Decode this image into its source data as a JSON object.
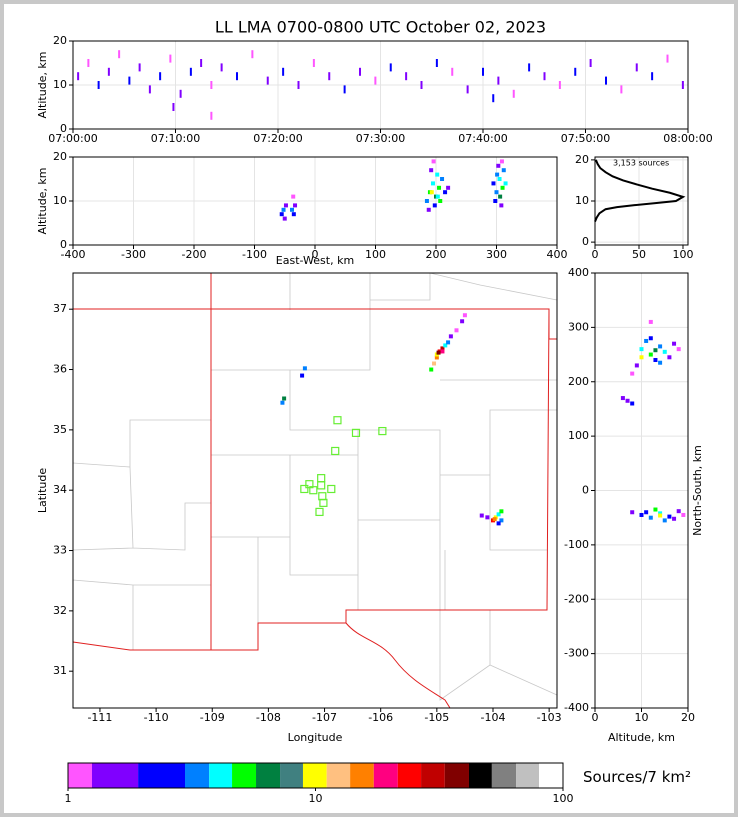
{
  "chart_data": [
    {
      "type": "scatter",
      "title": "LL LMA 0700-0800 UTC October 02, 2023",
      "ylabel": "Altitude, km",
      "xlim": [
        0,
        60
      ],
      "ylim": [
        0,
        20
      ],
      "xticks": [
        {
          "value": 0,
          "label": "07:00:00"
        },
        {
          "value": 10,
          "label": "07:10:00"
        },
        {
          "value": 20,
          "label": "07:20:00"
        },
        {
          "value": 30,
          "label": "07:30:00"
        },
        {
          "value": 40,
          "label": "07:40:00"
        },
        {
          "value": 50,
          "label": "07:50:00"
        },
        {
          "value": 60,
          "label": "08:00:00"
        }
      ],
      "yticks": [
        0,
        10,
        20
      ],
      "grid": true,
      "x": [
        0.5,
        1.5,
        2.5,
        3.5,
        4.5,
        5.5,
        6.5,
        7.5,
        8.5,
        9.5,
        10.5,
        11.5,
        12.5,
        13.5,
        14.5,
        16,
        17.5,
        19,
        20.5,
        22,
        23.5,
        25,
        26.5,
        28,
        29.5,
        31,
        32.5,
        34,
        35.5,
        37,
        38.5,
        40,
        41.5,
        43,
        44.5,
        46,
        47.5,
        49,
        50.5,
        52,
        53.5,
        55,
        56.5,
        58,
        59.5,
        9.8,
        41,
        13.5
      ],
      "y": [
        12,
        15,
        10,
        13,
        17,
        11,
        14,
        9,
        12,
        16,
        8,
        13,
        15,
        10,
        14,
        12,
        17,
        11,
        13,
        10,
        15,
        12,
        9,
        13,
        11,
        14,
        12,
        10,
        15,
        13,
        9,
        13,
        11,
        8,
        14,
        12,
        10,
        13,
        15,
        11,
        9,
        14,
        12,
        16,
        10,
        5,
        7,
        3
      ],
      "colors": [
        "#8000ff",
        "#ff55ff",
        "#0000ff",
        "#8000ff",
        "#ff55ff",
        "#0000ff",
        "#8000ff",
        "#8000ff",
        "#0000ff",
        "#ff55ff",
        "#8000ff",
        "#0000ff",
        "#8000ff",
        "#ff55ff",
        "#8000ff",
        "#0000ff",
        "#ff55ff",
        "#8000ff",
        "#0000ff",
        "#8000ff",
        "#ff55ff",
        "#8000ff",
        "#0000ff",
        "#8000ff",
        "#ff55ff",
        "#0000ff",
        "#8000ff",
        "#8000ff",
        "#0000ff",
        "#ff55ff",
        "#8000ff",
        "#0000ff",
        "#8000ff",
        "#ff55ff",
        "#0000ff",
        "#8000ff",
        "#ff55ff",
        "#0000ff",
        "#8000ff",
        "#0000ff",
        "#ff55ff",
        "#8000ff",
        "#0000ff",
        "#ff55ff",
        "#8000ff",
        "#8000ff",
        "#0000ff",
        "#ff55ff"
      ]
    },
    {
      "type": "scatter",
      "xlabel": "East-West, km",
      "ylabel": "Altitude, km",
      "xlim": [
        -400,
        400
      ],
      "ylim": [
        0,
        20
      ],
      "xticks": [
        -400,
        -300,
        -200,
        -100,
        0,
        100,
        200,
        300,
        400
      ],
      "yticks": [
        0,
        10,
        20
      ],
      "grid": true,
      "x": [
        -55,
        -52,
        -50,
        -48,
        -38,
        -35,
        -33,
        -36,
        185,
        190,
        195,
        200,
        205,
        198,
        210,
        192,
        202,
        215,
        188,
        207,
        196,
        220,
        193,
        203,
        300,
        305,
        310,
        298,
        312,
        303,
        308,
        315,
        295,
        306,
        301,
        309
      ],
      "y": [
        7,
        8,
        6,
        9,
        8,
        7,
        9,
        11,
        10,
        12,
        14,
        11,
        13,
        9,
        15,
        17,
        16,
        12,
        8,
        10,
        19,
        13,
        12,
        11,
        12,
        15,
        13,
        10,
        17,
        18,
        9,
        14,
        14,
        11,
        16,
        19
      ],
      "colors": [
        "#0000ff",
        "#0080ff",
        "#8000ff",
        "#8000ff",
        "#0080ff",
        "#0000ff",
        "#8000ff",
        "#ff55ff",
        "#0080ff",
        "#00ff00",
        "#00ffff",
        "#008040",
        "#00ff00",
        "#0000ff",
        "#0080ff",
        "#8000ff",
        "#00ffff",
        "#0000ff",
        "#8000ff",
        "#00ff00",
        "#ff55ff",
        "#8000ff",
        "#ffff00",
        "#00ffff",
        "#0080ff",
        "#00ffff",
        "#00ff00",
        "#0000ff",
        "#0080ff",
        "#8000ff",
        "#8000ff",
        "#00ffff",
        "#0000ff",
        "#008040",
        "#0080ff",
        "#ff55ff"
      ]
    },
    {
      "type": "line",
      "annotation": "3,153 sources",
      "xlim": [
        0,
        105.7
      ],
      "ylim": [
        -0.7,
        20.7
      ],
      "xticks": [
        0,
        50,
        100
      ],
      "yticks": [
        0,
        10,
        20
      ],
      "grid": true,
      "x": [
        0,
        2,
        5,
        12,
        25,
        45,
        70,
        92,
        100,
        85,
        65,
        48,
        32,
        20,
        12,
        6,
        3,
        1
      ],
      "y": [
        5,
        6,
        7,
        8,
        8.5,
        9,
        9.5,
        10,
        11,
        12,
        13,
        14,
        15,
        16,
        17,
        18,
        19,
        20
      ]
    },
    {
      "type": "scatter",
      "xlabel": "Longitude",
      "ylabel": "Latitude",
      "xlim": [
        -111.48,
        -102.86
      ],
      "ylim": [
        30.39,
        37.6
      ],
      "xticks": [
        -111,
        -110,
        -109,
        -108,
        -107,
        -106,
        -105,
        -104,
        -103
      ],
      "yticks": [
        31,
        32,
        33,
        34,
        35,
        36,
        37
      ],
      "grid": false,
      "x": [
        -105.1,
        -105.05,
        -105.0,
        -104.95,
        -104.9,
        -104.85,
        -104.8,
        -104.75,
        -104.65,
        -104.55,
        -104.5,
        -105.0,
        -104.9,
        -104.97,
        -107.75,
        -107.72,
        -107.4,
        -107.35,
        -104.1,
        -104.0,
        -103.95,
        -103.9,
        -103.85,
        -103.9,
        -104.2,
        -103.85,
        -103.97
      ],
      "y": [
        36.0,
        36.1,
        36.2,
        36.3,
        36.35,
        36.4,
        36.45,
        36.55,
        36.65,
        36.8,
        36.9,
        36.25,
        36.3,
        36.28,
        35.45,
        35.52,
        35.9,
        36.02,
        33.55,
        33.5,
        33.55,
        33.6,
        33.5,
        33.45,
        33.58,
        33.65,
        33.52
      ],
      "colors": [
        "#00ff00",
        "#ffc080",
        "#ff8000",
        "#ff0000",
        "#c00000",
        "#00ffff",
        "#0080ff",
        "#8000ff",
        "#ff55ff",
        "#8000ff",
        "#ff55ff",
        "#ffff00",
        "#ff0080",
        "#800000",
        "#0080ff",
        "#008040",
        "#0000ff",
        "#0080ff",
        "#8000ff",
        "#ff0000",
        "#ffff00",
        "#00ffff",
        "#0080ff",
        "#0000ff",
        "#8000ff",
        "#00ff00",
        "#ff8000"
      ],
      "stations": {
        "x": [
          -106.77,
          -106.44,
          -105.97,
          -106.81,
          -107.06,
          -107.27,
          -107.06,
          -107.36,
          -107.2,
          -106.88,
          -107.04,
          -107.02,
          -107.09
        ],
        "y": [
          35.16,
          34.95,
          34.98,
          34.65,
          34.2,
          34.1,
          34.08,
          34.02,
          34.0,
          34.02,
          33.9,
          33.79,
          33.64
        ],
        "color": "#66ee33"
      }
    },
    {
      "type": "scatter",
      "xlabel": "Altitude, km",
      "ylabel": "North-South, km",
      "xlim": [
        0,
        20
      ],
      "ylim": [
        -400,
        400
      ],
      "xticks": [
        0,
        10,
        20
      ],
      "yticks": [
        -400,
        -300,
        -200,
        -100,
        0,
        100,
        200,
        300,
        400
      ],
      "grid": true,
      "x": [
        10,
        12,
        14,
        13,
        11,
        15,
        16,
        9,
        8,
        17,
        12,
        14,
        18,
        7,
        8,
        6,
        12,
        10,
        13,
        8,
        10,
        12,
        14,
        16,
        18,
        13,
        15,
        11,
        19,
        17,
        14
      ],
      "y": [
        260,
        250,
        265,
        240,
        275,
        255,
        245,
        230,
        215,
        270,
        280,
        235,
        260,
        165,
        160,
        170,
        310,
        245,
        258,
        -40,
        -45,
        -50,
        -42,
        -48,
        -38,
        -35,
        -55,
        -40,
        -45,
        -52,
        -46
      ],
      "colors": [
        "#00ffff",
        "#00ff00",
        "#0080ff",
        "#0000ff",
        "#0080ff",
        "#00ffff",
        "#8000ff",
        "#8000ff",
        "#ff55ff",
        "#8000ff",
        "#0000ff",
        "#0080ff",
        "#ff55ff",
        "#8000ff",
        "#0000ff",
        "#8000ff",
        "#ff55ff",
        "#ffff00",
        "#008040",
        "#8000ff",
        "#0000ff",
        "#0080ff",
        "#00ffff",
        "#0000ff",
        "#8000ff",
        "#00ff00",
        "#0080ff",
        "#0000ff",
        "#ff55ff",
        "#8000ff",
        "#ffff00"
      ]
    },
    {
      "type": "colorbar",
      "label": "Sources/7 km²",
      "log": true,
      "xlim": [
        1,
        100
      ],
      "xticks": [
        1,
        10,
        100
      ],
      "bounds": [
        1,
        1.25,
        1.92,
        2.97,
        3.72,
        4.6,
        5.75,
        7.19,
        8.9,
        11.1,
        13.8,
        17.2,
        21.5,
        26.7,
        33.3,
        41.7,
        51.6,
        64.6,
        80,
        100
      ],
      "colors": [
        "#ff55ff",
        "#8000ff",
        "#0000ff",
        "#0080ff",
        "#00ffff",
        "#00ff00",
        "#008040",
        "#408080",
        "#ffff00",
        "#ffc080",
        "#ff8000",
        "#ff0080",
        "#ff0000",
        "#c00000",
        "#800000",
        "#000000",
        "#808080",
        "#c0c0c0",
        "#ffffff"
      ]
    }
  ]
}
